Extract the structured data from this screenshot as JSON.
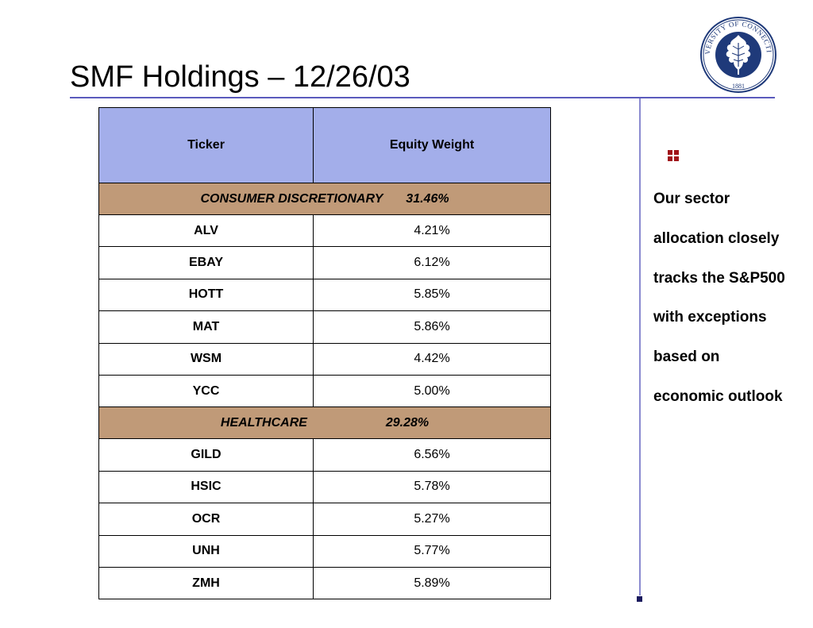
{
  "slide": {
    "title": "SMF Holdings – 12/26/03"
  },
  "logo": {
    "text_top": "UNIVERSITY OF CONNECTICUT",
    "year": "1881",
    "color": "#1f3a7a"
  },
  "table": {
    "headers": {
      "ticker": "Ticker",
      "weight": "Equity Weight"
    },
    "sectors": [
      {
        "name": "CONSUMER DISCRETIONARY",
        "weight": "31.46%",
        "rows": [
          {
            "ticker": "ALV",
            "weight": "4.21%"
          },
          {
            "ticker": "EBAY",
            "weight": "6.12%"
          },
          {
            "ticker": "HOTT",
            "weight": "5.85%"
          },
          {
            "ticker": "MAT",
            "weight": "5.86%"
          },
          {
            "ticker": "WSM",
            "weight": "4.42%"
          },
          {
            "ticker": "YCC",
            "weight": "5.00%"
          }
        ]
      },
      {
        "name": "HEALTHCARE",
        "weight": "29.28%",
        "rows": [
          {
            "ticker": "GILD",
            "weight": "6.56%"
          },
          {
            "ticker": "HSIC",
            "weight": "5.78%"
          },
          {
            "ticker": "OCR",
            "weight": "5.27%"
          },
          {
            "ticker": "UNH",
            "weight": "5.77%"
          },
          {
            "ticker": "ZMH",
            "weight": "5.89%"
          }
        ]
      }
    ],
    "colors": {
      "header_bg": "#a3aeea",
      "sector_bg": "#c09a78"
    }
  },
  "note": {
    "bullet_icon": "four-square-bullet-icon",
    "bullet_color": "#a0141a",
    "lines": [
      "Our sector",
      "allocation closely",
      "tracks the S&P500",
      "with exceptions",
      "based on",
      "economic outlook"
    ]
  }
}
